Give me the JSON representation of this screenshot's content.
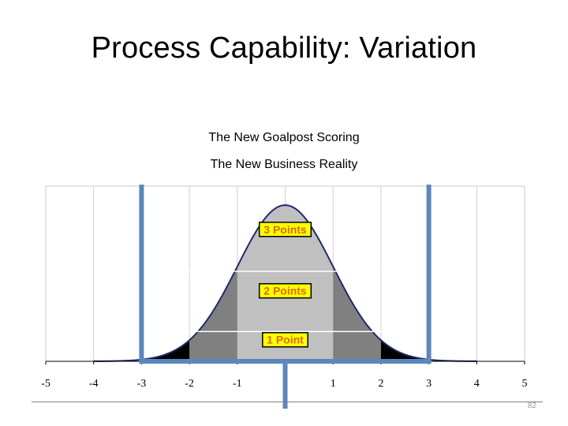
{
  "slide": {
    "title": "Process Capability: Variation",
    "page_number": "82"
  },
  "chart_data": {
    "type": "area",
    "title": "The New Goalpost Scoring",
    "subtitle": "The New Business Reality",
    "distribution": "normal",
    "mean": 0,
    "sd": 1,
    "peak_density": 0.399,
    "xlim": [
      -5,
      5
    ],
    "x_ticks": [
      -5,
      -4,
      -3,
      -2,
      -1,
      0,
      1,
      2,
      3,
      4,
      5
    ],
    "x_tick_labels": [
      "-5",
      "-4",
      "-3",
      "-2",
      "-1",
      "",
      "1",
      "2",
      "3",
      "4",
      "5"
    ],
    "vertical_gridlines": [
      -4,
      -3,
      -2,
      -1,
      0,
      1,
      2,
      3,
      4
    ],
    "goalposts": [
      -3,
      3
    ],
    "center_post": 0,
    "zones": [
      {
        "from": -1,
        "to": 1,
        "color": "#c0c0c0",
        "label": "3 Points"
      },
      {
        "from": -2,
        "to": -1,
        "color": "#808080",
        "label": "2 Points"
      },
      {
        "from": 1,
        "to": 2,
        "color": "#808080",
        "label": "2 Points"
      },
      {
        "from": -3,
        "to": -2,
        "color": "#000000",
        "label": "1 Point"
      },
      {
        "from": 2,
        "to": 3,
        "color": "#000000",
        "label": "1 Point"
      }
    ],
    "score_labels": [
      {
        "text": "3 Points",
        "y_density": 0.337
      },
      {
        "text": "2 Points",
        "y_density": 0.18
      },
      {
        "text": "1 Point",
        "y_density": 0.055
      }
    ],
    "level_lines": [
      0.23,
      0.076
    ],
    "colors": {
      "curve_outline": "#1f2a6b",
      "goalpost": "#5b87bb",
      "label_bg": "#ffff00",
      "label_text": "#d96b00",
      "label_border": "#000000"
    }
  }
}
